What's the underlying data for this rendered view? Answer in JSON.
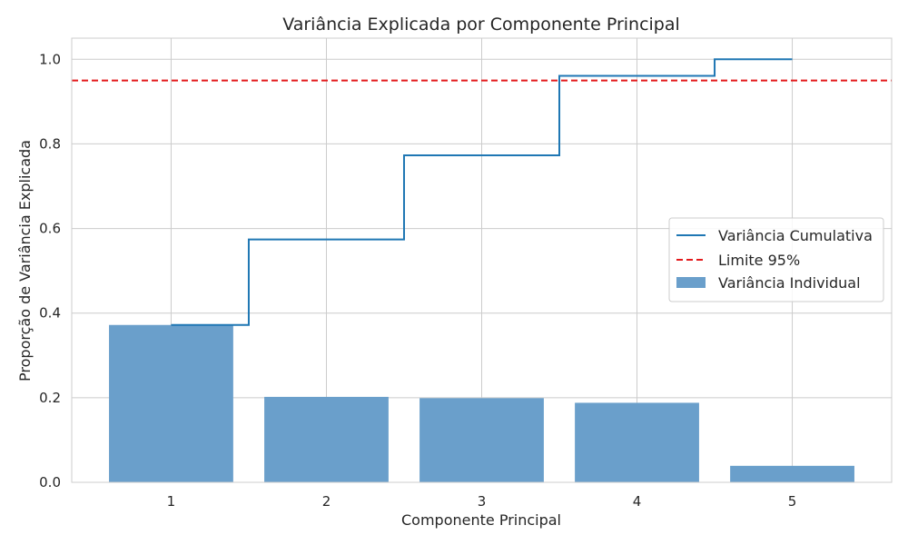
{
  "chart_data": {
    "type": "bar",
    "title": "Variância Explicada por Componente Principal",
    "xlabel": "Componente Principal",
    "ylabel": "Proporção de Variância Explicada",
    "categories": [
      "1",
      "2",
      "3",
      "4",
      "5"
    ],
    "ylim": [
      0,
      1.05
    ],
    "yticks": [
      "0.0",
      "0.2",
      "0.4",
      "0.6",
      "0.8",
      "1.0"
    ],
    "grid": true,
    "legend_position": "center-right",
    "series": [
      {
        "name": "Variância Individual",
        "kind": "bar",
        "color": "#6a9fcb",
        "values": [
          0.372,
          0.202,
          0.199,
          0.188,
          0.039
        ]
      },
      {
        "name": "Variância Cumulativa",
        "kind": "step-line",
        "color": "#1f77b4",
        "values": [
          0.372,
          0.574,
          0.773,
          0.961,
          1.0
        ]
      },
      {
        "name": "Limite 95%",
        "kind": "hline",
        "color": "#e31a1c",
        "style": "dashed",
        "value": 0.95
      }
    ]
  }
}
